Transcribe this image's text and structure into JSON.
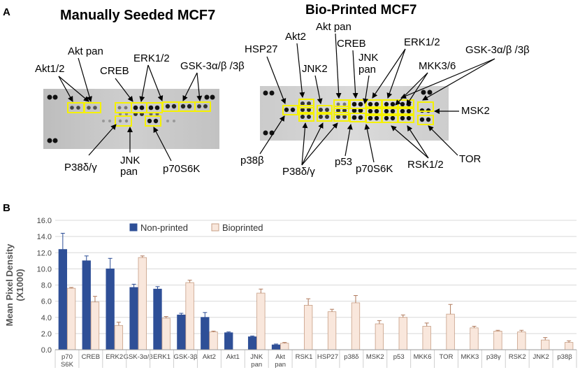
{
  "panel_a": {
    "label": "A",
    "left_title": "Manually Seeded MCF7",
    "right_title": "Bio-Printed MCF7",
    "left_labels": {
      "akt12": "Akt1/2",
      "aktpan": "Akt pan",
      "creb": "CREB",
      "erk12": "ERK1/2",
      "gsk": "GSK-3α/β /3β",
      "p38dg": "P38δ/γ",
      "jnkpan_1": "JNK",
      "jnkpan_2": "pan",
      "p70s6k": "p70S6K"
    },
    "right_labels": {
      "hsp27": "HSP27",
      "akt2": "Akt2",
      "aktpan": "Akt pan",
      "creb": "CREB",
      "erk12": "ERK1/2",
      "gsk": "GSK-3α/β /3β",
      "jnk2": "JNK2",
      "jnkpan_1": "JNK",
      "jnkpan_2": "pan",
      "mkk36": "MKK3/6",
      "msk2": "MSK2",
      "p38b": "p38β",
      "p38dg": "P38δ/γ",
      "p53": "p53",
      "p70s6k": "p70S6K",
      "rsk12": "RSK1/2",
      "tor": "TOR"
    }
  },
  "panel_b": {
    "label": "B"
  },
  "colors": {
    "non_printed": "#2e4f97",
    "bioprinted": "#f9e7dc",
    "bioprinted_edge": "#c79f86",
    "highlight": "#f5f100"
  },
  "chart_data": {
    "type": "bar",
    "ylabel": "Mean Pixel Density (X1000)",
    "ylim": [
      0,
      16
    ],
    "yticks": [
      "0.0",
      "2.0",
      "4.0",
      "6.0",
      "8.0",
      "10.0",
      "12.0",
      "14.0",
      "16.0"
    ],
    "grid": true,
    "legend_position": "top",
    "categories": [
      "p70 S6K",
      "CREB",
      "ERK2",
      "GSK-3α/β",
      "ERK1",
      "GSK-3β",
      "Akt2",
      "Akt1",
      "JNK pan",
      "Akt pan",
      "RSK1",
      "HSP27",
      "p38δ",
      "MSK2",
      "p53",
      "MKK6",
      "TOR",
      "MKK3",
      "p38γ",
      "RSK2",
      "JNK2",
      "p38β"
    ],
    "series": [
      {
        "name": "Non-printed",
        "values": [
          12.4,
          11.0,
          10.0,
          7.7,
          7.5,
          4.3,
          4.0,
          2.1,
          1.6,
          0.6,
          null,
          null,
          null,
          null,
          null,
          null,
          null,
          null,
          null,
          null,
          null,
          null
        ],
        "errors": [
          2.0,
          0.6,
          1.3,
          0.4,
          0.3,
          0.2,
          0.6,
          0.1,
          0.1,
          0.1,
          null,
          null,
          null,
          null,
          null,
          null,
          null,
          null,
          null,
          null,
          null,
          null
        ]
      },
      {
        "name": "Bioprinted",
        "values": [
          7.6,
          5.9,
          3.0,
          11.4,
          3.9,
          8.3,
          2.2,
          null,
          7.0,
          0.8,
          5.5,
          4.7,
          5.8,
          3.2,
          4.0,
          2.9,
          4.4,
          2.7,
          2.3,
          2.2,
          1.2,
          0.9
        ],
        "errors": [
          0.1,
          0.7,
          0.4,
          0.2,
          0.2,
          0.3,
          0.1,
          null,
          0.5,
          0.1,
          0.8,
          0.3,
          0.9,
          0.4,
          0.3,
          0.4,
          1.2,
          0.2,
          0.1,
          0.2,
          0.3,
          0.2
        ]
      }
    ]
  }
}
